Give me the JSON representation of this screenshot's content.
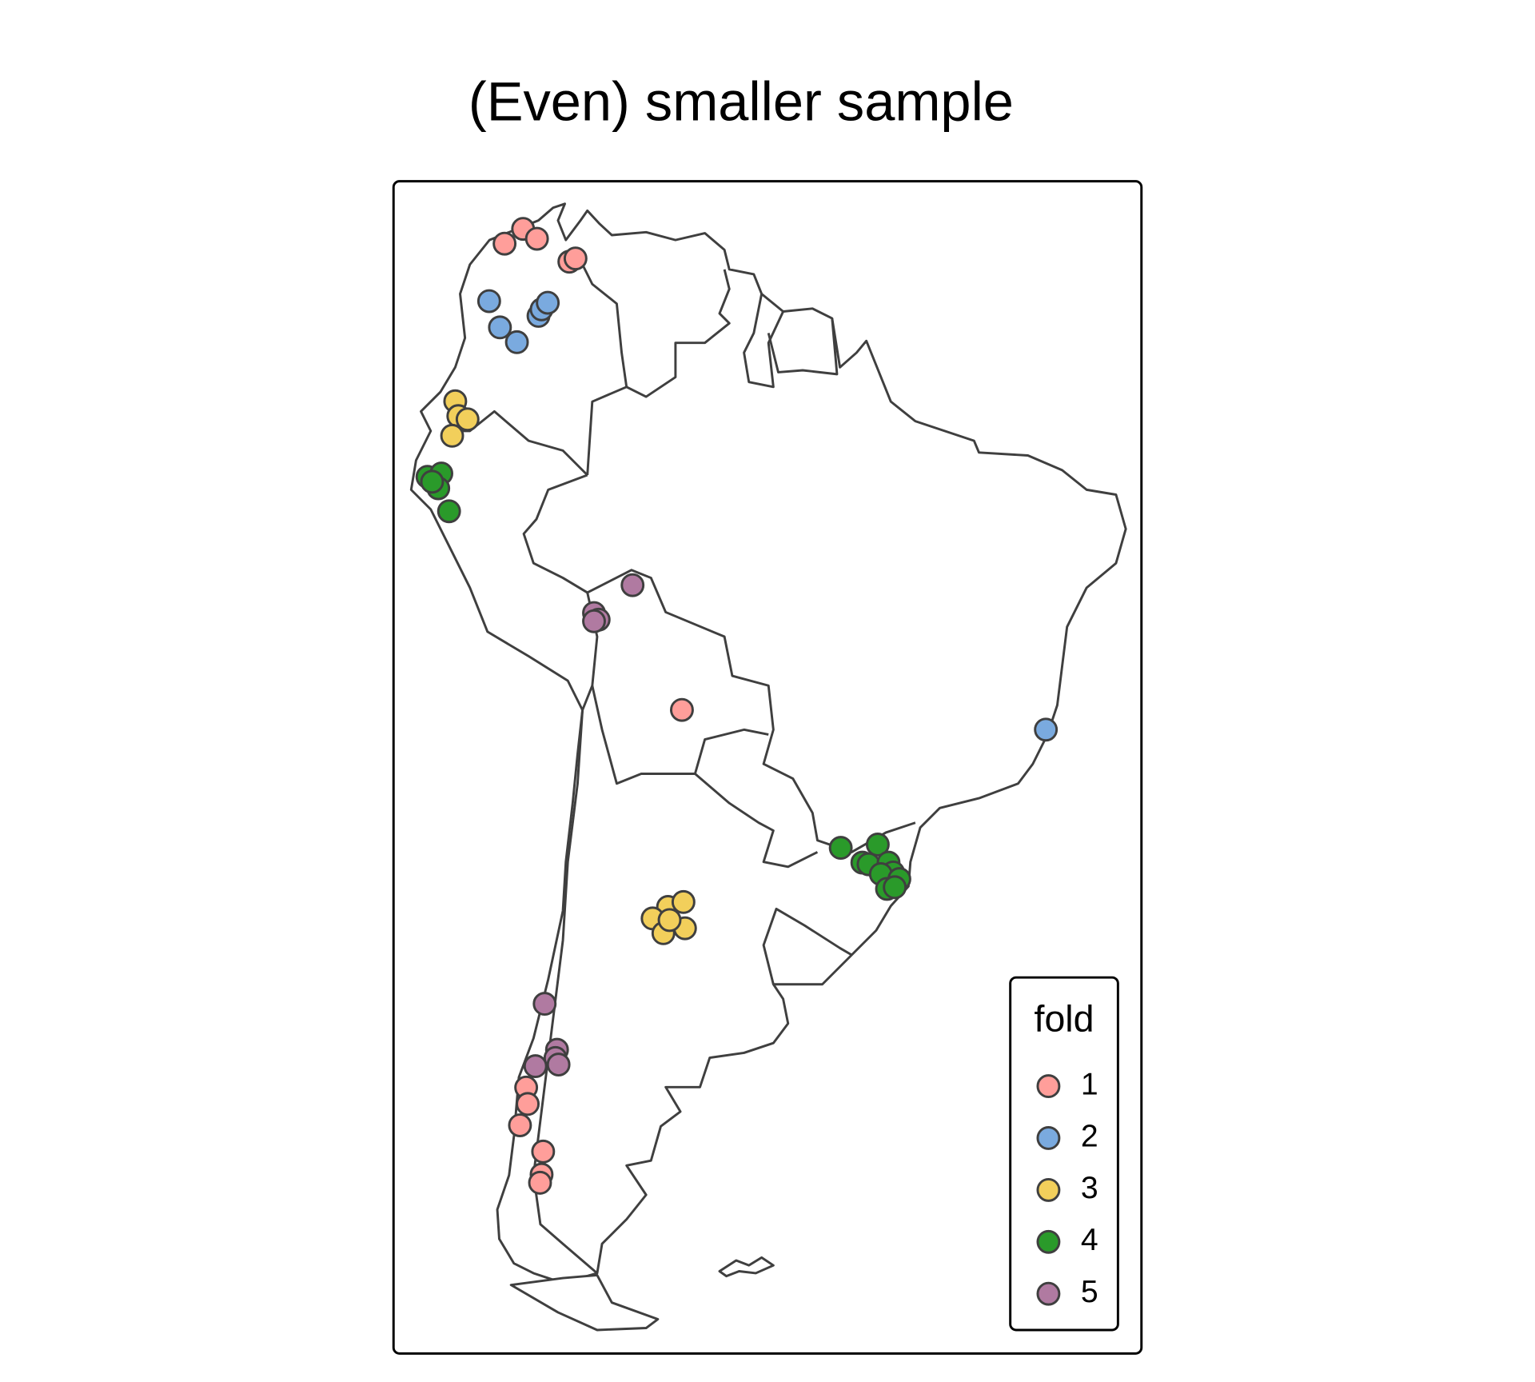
{
  "chart_data": {
    "type": "scatter",
    "title": "(Even) smaller sample",
    "legend_title": "fold",
    "legend": "bottom-right",
    "xlim": [
      -82.3,
      -33.8
    ],
    "ylim": [
      -57.5,
      13.9
    ],
    "series": [
      {
        "name": "1",
        "color": "#ff9e9a",
        "x": [
          -75.1,
          -73.9,
          -73.0,
          -70.9,
          -70.5,
          -63.6,
          -73.7,
          -73.6,
          -74.1,
          -72.6,
          -72.7,
          -72.8
        ],
        "values": [
          10.1,
          11.0,
          10.4,
          9.0,
          9.2,
          -18.3,
          -41.3,
          -42.3,
          -43.6,
          -45.2,
          -46.6,
          -47.1
        ]
      },
      {
        "name": "2",
        "color": "#7aaadf",
        "x": [
          -76.1,
          -75.4,
          -74.3,
          -72.9,
          -72.7,
          -72.3,
          -40.0
        ],
        "values": [
          6.6,
          5.0,
          4.1,
          5.7,
          6.1,
          6.5,
          -19.5
        ]
      },
      {
        "name": "3",
        "color": "#f2cf5b",
        "x": [
          -78.3,
          -78.1,
          -77.5,
          -78.5,
          -64.5,
          -63.5,
          -65.5,
          -63.4,
          -64.8,
          -64.4
        ],
        "values": [
          0.5,
          -0.4,
          -0.6,
          -1.6,
          -30.3,
          -30.0,
          -31.0,
          -31.6,
          -31.9,
          -31.1
        ]
      },
      {
        "name": "4",
        "color": "#2a9a2a",
        "x": [
          -80.1,
          -79.2,
          -79.4,
          -79.8,
          -78.7,
          -53.3,
          -50.9,
          -51.9,
          -51.5,
          -50.2,
          -49.9,
          -50.7,
          -49.5,
          -50.3,
          -49.8
        ],
        "values": [
          -4.1,
          -3.9,
          -4.8,
          -4.4,
          -6.2,
          -26.7,
          -26.5,
          -27.6,
          -27.7,
          -27.6,
          -28.2,
          -28.3,
          -28.6,
          -29.2,
          -29.1
        ]
      },
      {
        "name": "5",
        "color": "#b07aa1",
        "x": [
          -66.8,
          -69.3,
          -69.0,
          -69.3,
          -72.5,
          -71.7,
          -71.8,
          -71.6,
          -73.1
        ],
        "values": [
          -10.7,
          -12.4,
          -12.8,
          -12.9,
          -36.2,
          -39.0,
          -39.5,
          -39.9,
          -40.0
        ]
      }
    ]
  }
}
